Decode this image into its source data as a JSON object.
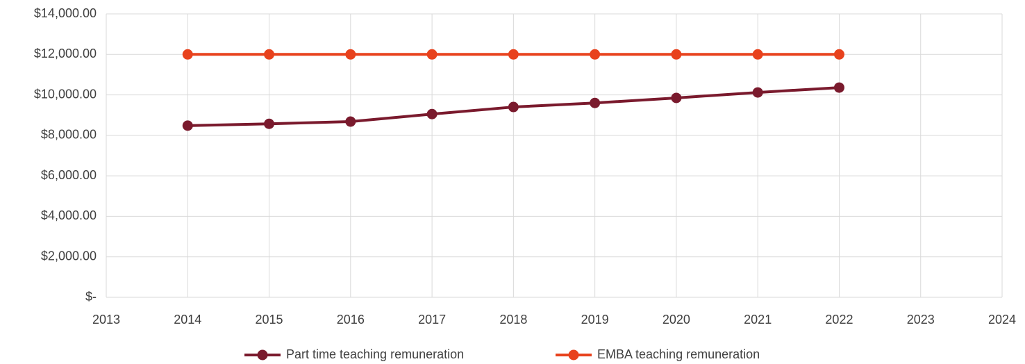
{
  "chart_data": {
    "type": "line",
    "x": [
      2014,
      2015,
      2016,
      2017,
      2018,
      2019,
      2020,
      2021,
      2022
    ],
    "series": [
      {
        "name": "Part time teaching remuneration",
        "color": "#7a1a2d",
        "values": [
          8480,
          8570,
          8680,
          9050,
          9400,
          9600,
          9850,
          10120,
          10360
        ]
      },
      {
        "name": "EMBA teaching remuneration",
        "color": "#e8421d",
        "values": [
          12000,
          12000,
          12000,
          12000,
          12000,
          12000,
          12000,
          12000,
          12000
        ]
      }
    ],
    "xlim": [
      2013,
      2024
    ],
    "xticks": [
      2013,
      2014,
      2015,
      2016,
      2017,
      2018,
      2019,
      2020,
      2021,
      2022,
      2023,
      2024
    ],
    "ylim": [
      0,
      14000
    ],
    "yticks": [
      {
        "value": 0,
        "label": "$-"
      },
      {
        "value": 2000,
        "label": "$2,000.00"
      },
      {
        "value": 4000,
        "label": "$4,000.00"
      },
      {
        "value": 6000,
        "label": "$6,000.00"
      },
      {
        "value": 8000,
        "label": "$8,000.00"
      },
      {
        "value": 10000,
        "label": "$10,000.00"
      },
      {
        "value": 12000,
        "label": "$12,000.00"
      },
      {
        "value": 14000,
        "label": "$14,000.00"
      }
    ],
    "grid": true,
    "legend": "bottom"
  }
}
